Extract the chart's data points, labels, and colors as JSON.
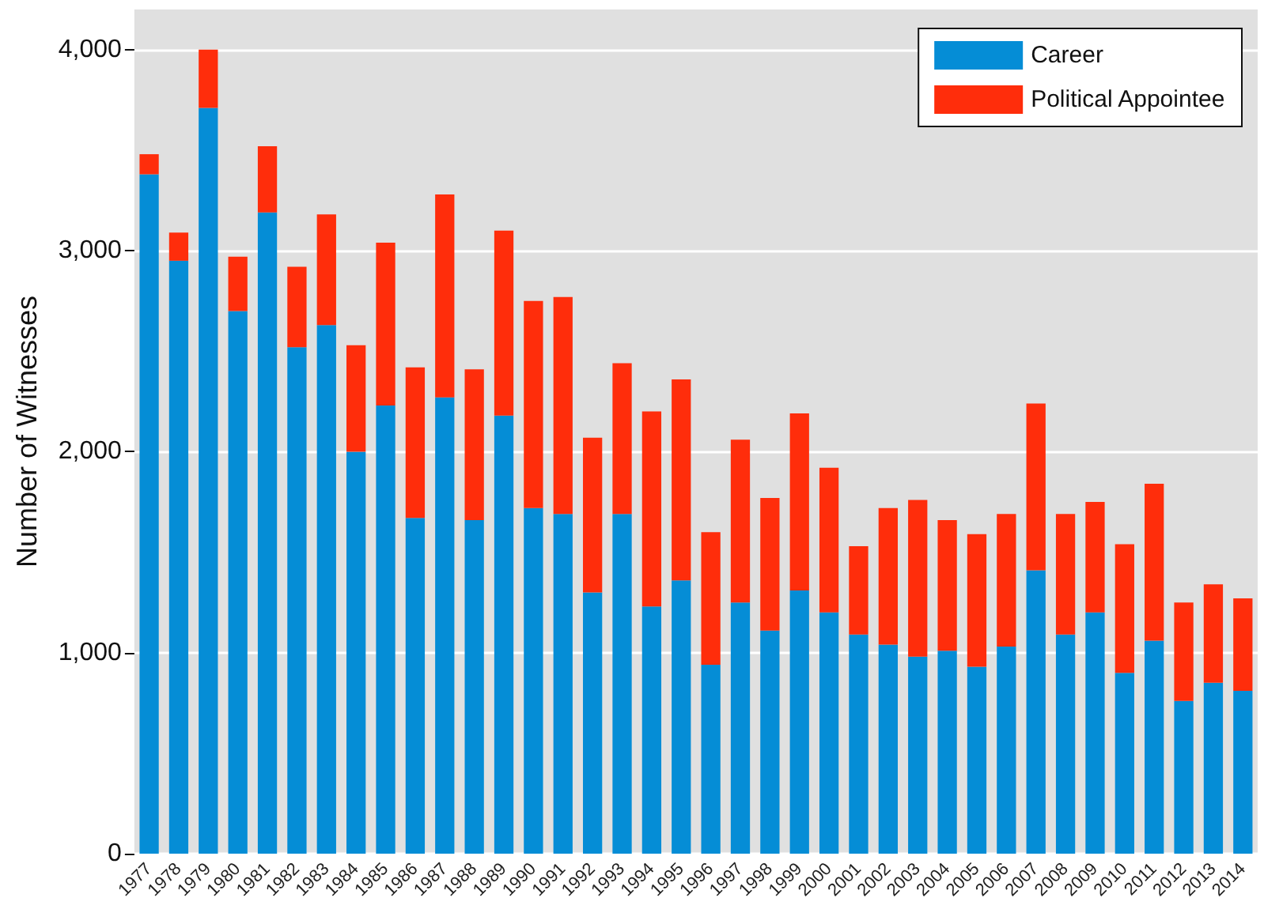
{
  "chart_data": {
    "type": "bar",
    "ylabel": "Number of Witnesses",
    "categories": [
      "1977",
      "1978",
      "1979",
      "1980",
      "1981",
      "1982",
      "1983",
      "1984",
      "1985",
      "1986",
      "1987",
      "1988",
      "1989",
      "1990",
      "1991",
      "1992",
      "1993",
      "1994",
      "1995",
      "1996",
      "1997",
      "1998",
      "1999",
      "2000",
      "2001",
      "2002",
      "2003",
      "2004",
      "2005",
      "2006",
      "2007",
      "2008",
      "2009",
      "2010",
      "2011",
      "2012",
      "2013",
      "2014"
    ],
    "series": [
      {
        "name": "Career",
        "color": "#058dd6",
        "values": [
          3380,
          2950,
          3710,
          2700,
          3190,
          2520,
          2630,
          2000,
          2230,
          1670,
          2270,
          1660,
          2180,
          1720,
          1690,
          1300,
          1690,
          1230,
          1360,
          940,
          1250,
          1110,
          1310,
          1200,
          1090,
          1040,
          980,
          1010,
          930,
          1030,
          1410,
          1090,
          1200,
          900,
          1060,
          760,
          850,
          810
        ]
      },
      {
        "name": "Political Appointee",
        "color": "#ff2d0b",
        "values": [
          100,
          140,
          290,
          270,
          330,
          400,
          550,
          530,
          810,
          750,
          1010,
          750,
          920,
          1030,
          1080,
          770,
          750,
          970,
          1000,
          660,
          810,
          660,
          880,
          720,
          440,
          680,
          780,
          650,
          660,
          660,
          830,
          600,
          550,
          640,
          780,
          490,
          490,
          460
        ]
      }
    ],
    "stacked": true,
    "ylim": [
      0,
      4200
    ],
    "yticks": [
      0,
      {
        "value": 1000,
        "label": "1,000"
      },
      {
        "value": 2000,
        "label": "2,000"
      },
      {
        "value": 3000,
        "label": "3,000"
      },
      {
        "value": 4000,
        "label": "4,000"
      }
    ],
    "grid": "y",
    "legend": "top right"
  }
}
